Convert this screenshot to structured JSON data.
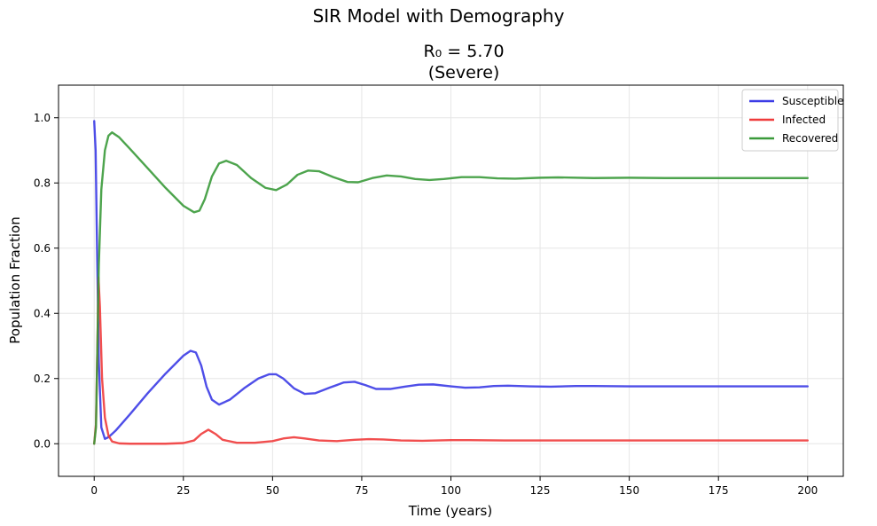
{
  "chart_data": {
    "type": "line",
    "suptitle": "SIR Model with Demography",
    "title_line1": "R₀ = 5.70",
    "title_line2": "(Severe)",
    "xlabel": "Time (years)",
    "ylabel": "Population Fraction",
    "xlim": [
      -10,
      210
    ],
    "ylim": [
      -0.1,
      1.1
    ],
    "xticks": [
      0,
      25,
      50,
      75,
      100,
      125,
      150,
      175,
      200
    ],
    "xtick_labels": [
      "0",
      "25",
      "50",
      "75",
      "100",
      "125",
      "150",
      "175",
      "200"
    ],
    "yticks": [
      0.0,
      0.2,
      0.4,
      0.6,
      0.8,
      1.0
    ],
    "ytick_labels": [
      "0.0",
      "0.2",
      "0.4",
      "0.6",
      "0.8",
      "1.0"
    ],
    "grid": true,
    "legend_position": "top-right",
    "series": [
      {
        "name": "Susceptible",
        "color": "#3b3be6",
        "points": [
          [
            0,
            0.99
          ],
          [
            0.4,
            0.9
          ],
          [
            0.8,
            0.6
          ],
          [
            1.3,
            0.25
          ],
          [
            2,
            0.05
          ],
          [
            3,
            0.015
          ],
          [
            4,
            0.02
          ],
          [
            6,
            0.04
          ],
          [
            10,
            0.09
          ],
          [
            15,
            0.155
          ],
          [
            20,
            0.215
          ],
          [
            25,
            0.27
          ],
          [
            27,
            0.285
          ],
          [
            28.5,
            0.28
          ],
          [
            30,
            0.24
          ],
          [
            31.5,
            0.175
          ],
          [
            33,
            0.135
          ],
          [
            35,
            0.12
          ],
          [
            38,
            0.135
          ],
          [
            42,
            0.17
          ],
          [
            46,
            0.2
          ],
          [
            49,
            0.213
          ],
          [
            51,
            0.213
          ],
          [
            53,
            0.2
          ],
          [
            56,
            0.17
          ],
          [
            59,
            0.153
          ],
          [
            62,
            0.155
          ],
          [
            66,
            0.172
          ],
          [
            70,
            0.188
          ],
          [
            73,
            0.19
          ],
          [
            76,
            0.18
          ],
          [
            79,
            0.168
          ],
          [
            83,
            0.168
          ],
          [
            87,
            0.175
          ],
          [
            91,
            0.181
          ],
          [
            95,
            0.182
          ],
          [
            100,
            0.176
          ],
          [
            104,
            0.172
          ],
          [
            108,
            0.173
          ],
          [
            112,
            0.177
          ],
          [
            116,
            0.178
          ],
          [
            122,
            0.176
          ],
          [
            128,
            0.175
          ],
          [
            135,
            0.177
          ],
          [
            140,
            0.177
          ],
          [
            150,
            0.176
          ],
          [
            160,
            0.176
          ],
          [
            175,
            0.176
          ],
          [
            200,
            0.176
          ]
        ]
      },
      {
        "name": "Infected",
        "color": "#ef3b3b",
        "points": [
          [
            0,
            0.0
          ],
          [
            0.5,
            0.06
          ],
          [
            0.9,
            0.3
          ],
          [
            1.2,
            0.51
          ],
          [
            1.6,
            0.42
          ],
          [
            2.2,
            0.2
          ],
          [
            3,
            0.08
          ],
          [
            4,
            0.025
          ],
          [
            5,
            0.007
          ],
          [
            7,
            0.001
          ],
          [
            10,
            0.0
          ],
          [
            20,
            0.0
          ],
          [
            25,
            0.002
          ],
          [
            28,
            0.01
          ],
          [
            30,
            0.03
          ],
          [
            32,
            0.043
          ],
          [
            34,
            0.03
          ],
          [
            36,
            0.012
          ],
          [
            40,
            0.003
          ],
          [
            45,
            0.003
          ],
          [
            50,
            0.008
          ],
          [
            53,
            0.016
          ],
          [
            56,
            0.02
          ],
          [
            59,
            0.016
          ],
          [
            63,
            0.01
          ],
          [
            68,
            0.008
          ],
          [
            73,
            0.012
          ],
          [
            77,
            0.014
          ],
          [
            81,
            0.013
          ],
          [
            86,
            0.01
          ],
          [
            92,
            0.009
          ],
          [
            100,
            0.011
          ],
          [
            105,
            0.011
          ],
          [
            115,
            0.01
          ],
          [
            130,
            0.01
          ],
          [
            150,
            0.01
          ],
          [
            200,
            0.01
          ]
        ]
      },
      {
        "name": "Recovered",
        "color": "#3a9a3a",
        "points": [
          [
            0,
            0.0
          ],
          [
            0.5,
            0.05
          ],
          [
            0.9,
            0.3
          ],
          [
            1.3,
            0.55
          ],
          [
            2,
            0.78
          ],
          [
            3,
            0.9
          ],
          [
            4,
            0.945
          ],
          [
            5,
            0.955
          ],
          [
            7,
            0.94
          ],
          [
            10,
            0.905
          ],
          [
            15,
            0.845
          ],
          [
            20,
            0.785
          ],
          [
            25,
            0.73
          ],
          [
            28,
            0.71
          ],
          [
            29.5,
            0.715
          ],
          [
            31,
            0.75
          ],
          [
            33,
            0.82
          ],
          [
            35,
            0.86
          ],
          [
            37,
            0.868
          ],
          [
            40,
            0.855
          ],
          [
            44,
            0.815
          ],
          [
            48,
            0.785
          ],
          [
            51,
            0.778
          ],
          [
            54,
            0.795
          ],
          [
            57,
            0.825
          ],
          [
            60,
            0.838
          ],
          [
            63,
            0.836
          ],
          [
            67,
            0.818
          ],
          [
            71,
            0.803
          ],
          [
            74,
            0.802
          ],
          [
            78,
            0.815
          ],
          [
            82,
            0.823
          ],
          [
            86,
            0.82
          ],
          [
            90,
            0.812
          ],
          [
            94,
            0.809
          ],
          [
            98,
            0.812
          ],
          [
            103,
            0.818
          ],
          [
            108,
            0.818
          ],
          [
            113,
            0.814
          ],
          [
            118,
            0.813
          ],
          [
            125,
            0.816
          ],
          [
            130,
            0.817
          ],
          [
            140,
            0.815
          ],
          [
            150,
            0.816
          ],
          [
            160,
            0.815
          ],
          [
            175,
            0.815
          ],
          [
            200,
            0.815
          ]
        ]
      }
    ]
  }
}
